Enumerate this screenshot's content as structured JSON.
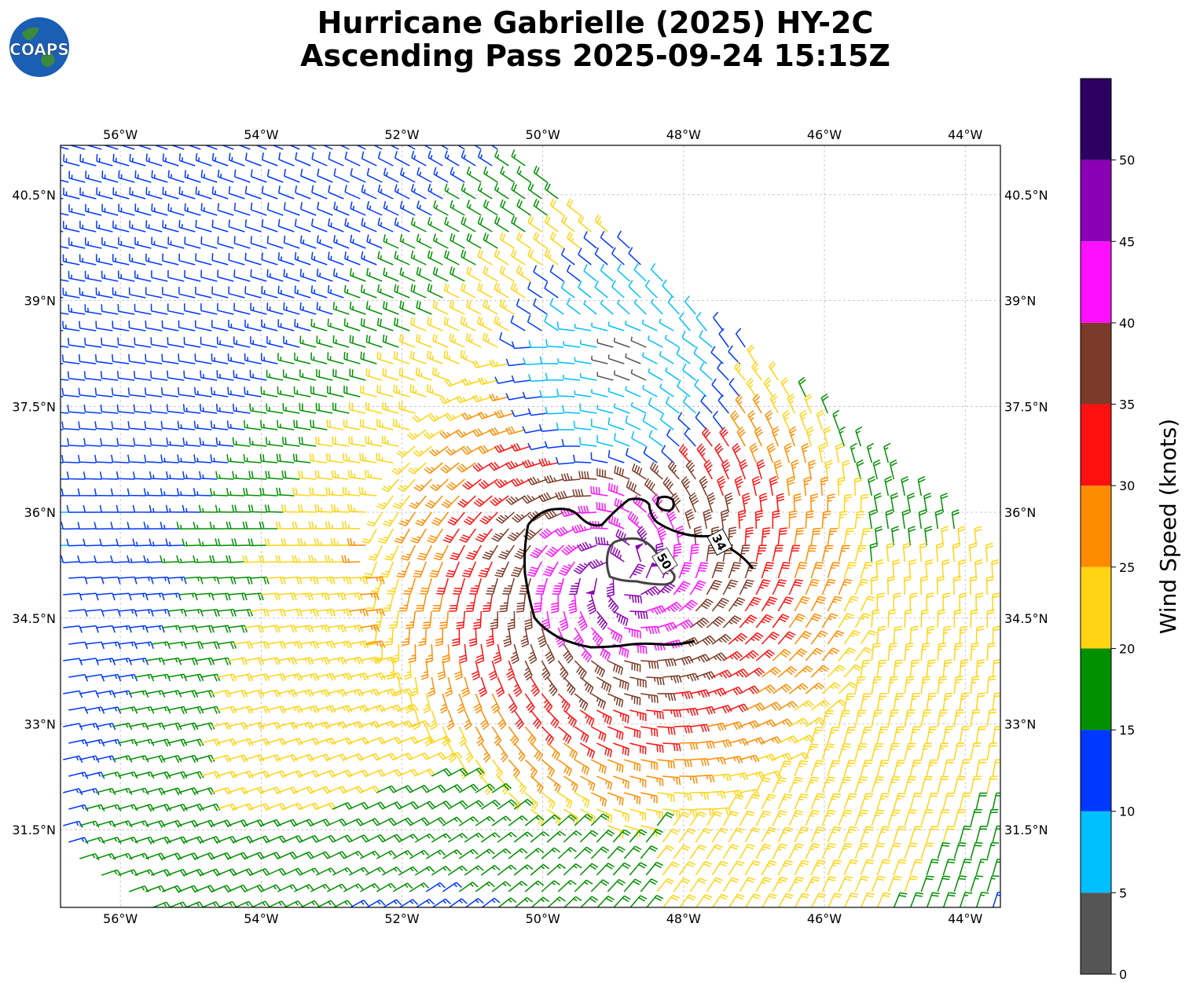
{
  "title_line1": "Hurricane Gabrielle (2025) HY-2C",
  "title_line2": "Ascending Pass 2025-09-24 15:15Z",
  "logo_text": "COAPS",
  "lon_ticks": [
    "56°W",
    "54°W",
    "52°W",
    "50°W",
    "48°W",
    "46°W",
    "44°W"
  ],
  "lat_ticks": [
    "40.5°N",
    "39°N",
    "37.5°N",
    "36°N",
    "34.5°N",
    "33°N",
    "31.5°N"
  ],
  "contours": [
    {
      "label": "34",
      "color": "#000000"
    },
    {
      "label": "50",
      "color": "#444444"
    }
  ],
  "colorbar": {
    "label": "Wind Speed (knots)",
    "ticks": [
      "0",
      "5",
      "10",
      "15",
      "20",
      "25",
      "30",
      "35",
      "40",
      "45",
      "50"
    ],
    "bins": [
      {
        "min": 0,
        "max": 5,
        "color": "#555555"
      },
      {
        "min": 5,
        "max": 10,
        "color": "#00bfff"
      },
      {
        "min": 10,
        "max": 15,
        "color": "#0038ff"
      },
      {
        "min": 15,
        "max": 20,
        "color": "#009000"
      },
      {
        "min": 20,
        "max": 25,
        "color": "#ffd414"
      },
      {
        "min": 25,
        "max": 30,
        "color": "#ff8c00"
      },
      {
        "min": 30,
        "max": 35,
        "color": "#ff1010"
      },
      {
        "min": 35,
        "max": 40,
        "color": "#7c3a28"
      },
      {
        "min": 40,
        "max": 45,
        "color": "#ff10ff"
      },
      {
        "min": 45,
        "max": 50,
        "color": "#8a00b4"
      },
      {
        "min": 50,
        "max": 55,
        "color": "#2c0060"
      }
    ]
  },
  "map": {
    "lon_range": [
      -56.85,
      -43.5
    ],
    "lat_range": [
      30.4,
      41.2
    ],
    "storm_center": {
      "lon": -48.9,
      "lat": 35.1
    }
  }
}
